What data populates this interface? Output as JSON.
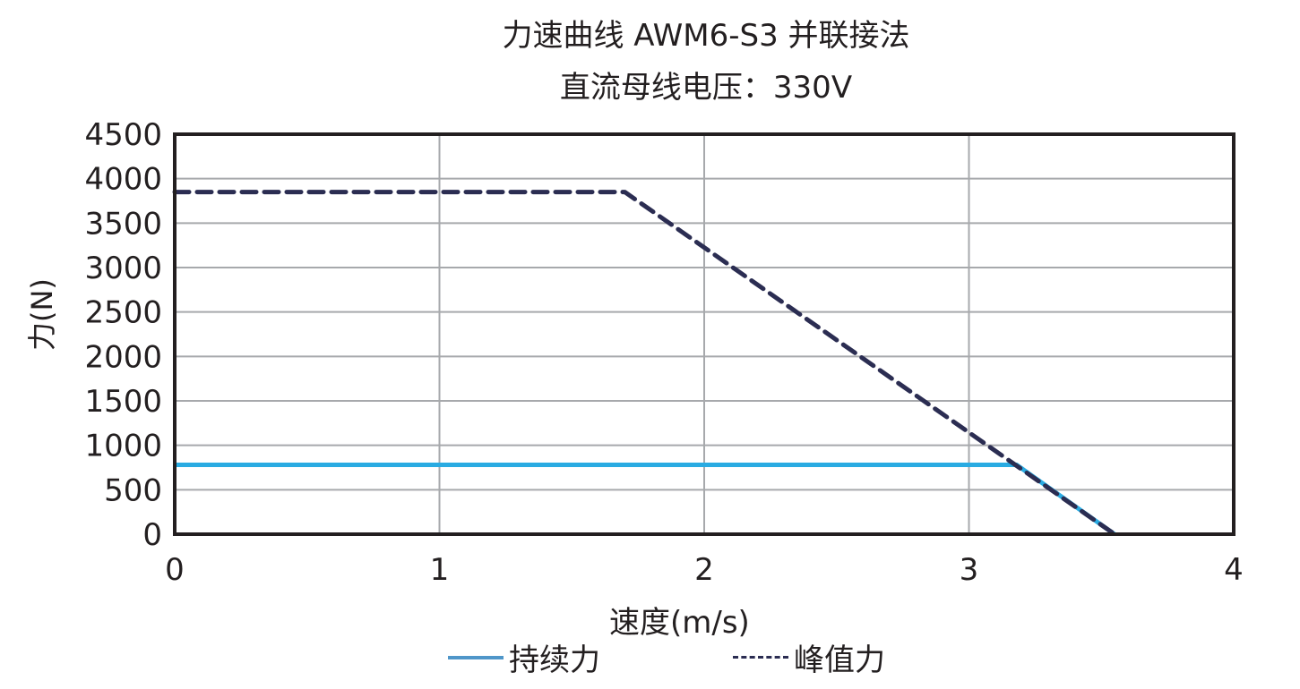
{
  "title": {
    "line1": "力速曲线 AWM6-S3 并联接法",
    "line2": "直流母线电压：330V"
  },
  "axes": {
    "xlabel": "速度(m/s)",
    "ylabel": "力(N)",
    "xticks": [
      "0",
      "1",
      "2",
      "3",
      "4"
    ],
    "yticks": [
      "0",
      "500",
      "1000",
      "1500",
      "2000",
      "2500",
      "3000",
      "3500",
      "4000",
      "4500"
    ]
  },
  "legend": {
    "continuous": "持续力",
    "peak": "峰值力"
  },
  "colors": {
    "continuous": "#29abe2",
    "peak": "#2b2d52",
    "grid": "#a7a9ac",
    "frame": "#231f20"
  },
  "chart_data": {
    "type": "line",
    "title": "力速曲线 AWM6-S3 并联接法 / 直流母线电压：330V",
    "xlabel": "速度(m/s)",
    "ylabel": "力(N)",
    "xlim": [
      0,
      4
    ],
    "ylim": [
      0,
      4500
    ],
    "grid": true,
    "legend_position": "bottom",
    "series": [
      {
        "name": "持续力",
        "style": "solid",
        "color": "#29abe2",
        "x": [
          0,
          3.18,
          3.55
        ],
        "y": [
          780,
          780,
          0
        ]
      },
      {
        "name": "峰值力",
        "style": "dashed",
        "color": "#2b2d52",
        "x": [
          0,
          1.7,
          3.55
        ],
        "y": [
          3850,
          3850,
          0
        ]
      }
    ]
  }
}
